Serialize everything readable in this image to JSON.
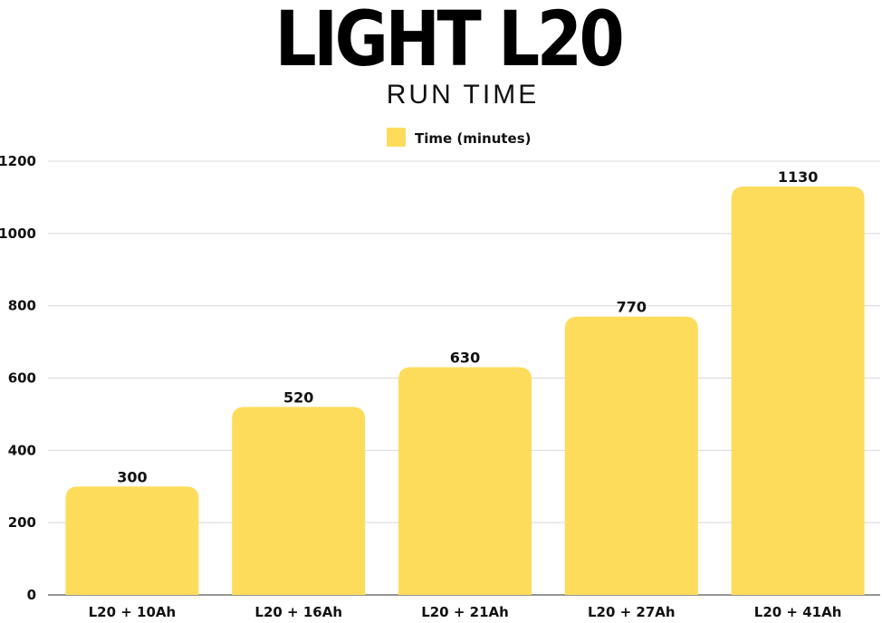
{
  "chart_data": {
    "type": "bar",
    "title": "LIGHT L20",
    "subtitle": "RUN TIME",
    "xlabel": "",
    "ylabel": "",
    "categories": [
      "L20 + 10Ah",
      "L20 + 16Ah",
      "L20 + 21Ah",
      "L20 + 27Ah",
      "L20 + 41Ah"
    ],
    "series": [
      {
        "name": "Time (minutes)",
        "values": [
          300,
          520,
          630,
          770,
          1130
        ],
        "color": "#FDDC5C"
      }
    ],
    "ylim": [
      0,
      1200
    ],
    "yticks": [
      0,
      200,
      400,
      600,
      800,
      1000,
      1200
    ],
    "grid": true,
    "legend_position": "top-center",
    "data_labels": true
  }
}
